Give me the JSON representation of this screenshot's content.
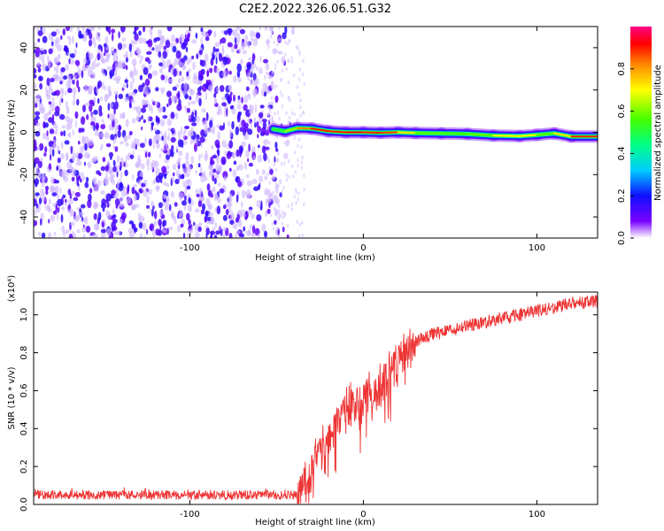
{
  "title": "C2E2.2022.326.06.51.G32",
  "chart_data": [
    {
      "type": "heatmap",
      "xlabel": "Height of straight line (km)",
      "ylabel": "Frequency (Hz)",
      "xlim": [
        -190,
        135
      ],
      "ylim": [
        -50,
        50
      ],
      "xticks": [
        -100,
        0,
        100
      ],
      "yticks": [
        -40,
        -20,
        0,
        20,
        40
      ],
      "noise_region_x": [
        -190,
        -40
      ],
      "signal_band": [
        {
          "x": -52,
          "freq": 1.5,
          "amp": 0.45
        },
        {
          "x": -45,
          "freq": 0.5,
          "amp": 0.55
        },
        {
          "x": -38,
          "freq": 2.0,
          "amp": 0.7
        },
        {
          "x": -30,
          "freq": 1.8,
          "amp": 0.95
        },
        {
          "x": -20,
          "freq": 0.5,
          "amp": 0.85
        },
        {
          "x": -10,
          "freq": 0.0,
          "amp": 0.95
        },
        {
          "x": 0,
          "freq": 0.0,
          "amp": 0.9
        },
        {
          "x": 10,
          "freq": -0.2,
          "amp": 0.9
        },
        {
          "x": 20,
          "freq": 0.0,
          "amp": 0.85
        },
        {
          "x": 30,
          "freq": -0.3,
          "amp": 0.6
        },
        {
          "x": 45,
          "freq": -0.5,
          "amp": 0.55
        },
        {
          "x": 60,
          "freq": -0.8,
          "amp": 0.55
        },
        {
          "x": 75,
          "freq": -1.5,
          "amp": 0.6
        },
        {
          "x": 90,
          "freq": -1.8,
          "amp": 0.8
        },
        {
          "x": 100,
          "freq": -1.2,
          "amp": 0.6
        },
        {
          "x": 110,
          "freq": -0.5,
          "amp": 0.55
        },
        {
          "x": 120,
          "freq": -2.0,
          "amp": 0.9
        },
        {
          "x": 135,
          "freq": -2.0,
          "amp": 0.9
        }
      ],
      "colorbar": {
        "label": "Normalized spectral amplitude",
        "range": [
          0,
          1
        ],
        "ticks": [
          0.0,
          0.2,
          0.4,
          0.6,
          0.8
        ]
      }
    },
    {
      "type": "line",
      "xlabel": "Height of straight line (km)",
      "ylabel": "SNR (10 * v/v)",
      "y_multiplier": "(x10⁴)",
      "xlim": [
        -190,
        135
      ],
      "ylim": [
        0,
        1.12
      ],
      "xticks": [
        -100,
        0,
        100
      ],
      "yticks": [
        0.0,
        0.2,
        0.4,
        0.6,
        0.8,
        1.0
      ],
      "color": "#ee3333",
      "series": [
        {
          "x": [
            -190,
            -150,
            -100,
            -60,
            -40,
            -35,
            -30,
            -25,
            -20,
            -15,
            -10,
            -5,
            0,
            5,
            10,
            15,
            20,
            25,
            30,
            40,
            50,
            60,
            70,
            80,
            90,
            100,
            110,
            120,
            135
          ],
          "y": [
            0.05,
            0.05,
            0.05,
            0.05,
            0.05,
            0.08,
            0.18,
            0.3,
            0.38,
            0.45,
            0.5,
            0.52,
            0.56,
            0.6,
            0.62,
            0.68,
            0.76,
            0.82,
            0.86,
            0.9,
            0.92,
            0.94,
            0.96,
            0.98,
            1.0,
            1.02,
            1.04,
            1.06,
            1.07
          ]
        }
      ]
    }
  ]
}
